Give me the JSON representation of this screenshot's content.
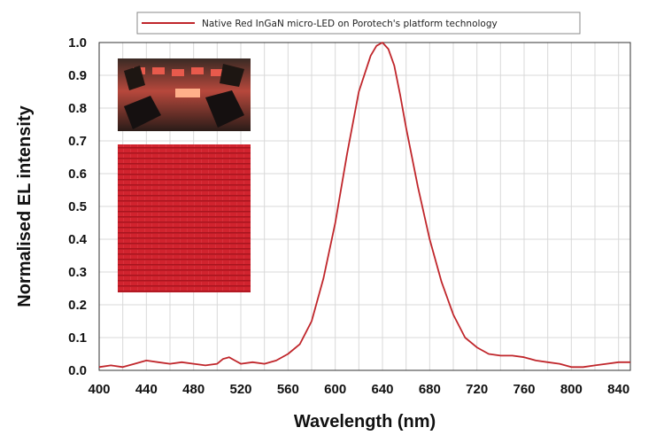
{
  "chart_data": {
    "type": "line",
    "xlabel": "Wavelength (nm)",
    "ylabel": "Normalised EL intensity",
    "xlim": [
      400,
      850
    ],
    "ylim": [
      0,
      1
    ],
    "x_ticks": [
      400,
      440,
      480,
      520,
      560,
      600,
      640,
      680,
      720,
      760,
      800,
      840
    ],
    "x_tick_labels": [
      "400",
      "440",
      "480",
      "520",
      "560",
      "600",
      "640",
      "680",
      "720",
      "760",
      "800",
      "840"
    ],
    "y_ticks": [
      0,
      0.1,
      0.2,
      0.3,
      0.4,
      0.5,
      0.6,
      0.7,
      0.8,
      0.9,
      1.0
    ],
    "y_tick_labels": [
      "0.0",
      "0.1",
      "0.2",
      "0.3",
      "0.4",
      "0.5",
      "0.6",
      "0.7",
      "0.8",
      "0.9",
      "1.0"
    ],
    "grid": true,
    "legend_position": "top",
    "series": [
      {
        "name": "Native Red InGaN micro-LED on Porotech's platform technology",
        "color": "#c0262b",
        "x": [
          400,
          410,
          420,
          430,
          440,
          450,
          460,
          470,
          480,
          490,
          500,
          505,
          510,
          515,
          520,
          530,
          540,
          550,
          560,
          570,
          580,
          590,
          600,
          610,
          620,
          630,
          635,
          640,
          645,
          650,
          655,
          660,
          670,
          680,
          690,
          700,
          710,
          720,
          730,
          740,
          750,
          760,
          770,
          780,
          790,
          800,
          810,
          820,
          830,
          840,
          850
        ],
        "y": [
          0.01,
          0.015,
          0.01,
          0.02,
          0.03,
          0.025,
          0.02,
          0.025,
          0.02,
          0.015,
          0.02,
          0.035,
          0.04,
          0.03,
          0.02,
          0.025,
          0.02,
          0.03,
          0.05,
          0.08,
          0.15,
          0.28,
          0.45,
          0.66,
          0.85,
          0.96,
          0.99,
          1.0,
          0.98,
          0.93,
          0.84,
          0.74,
          0.56,
          0.4,
          0.27,
          0.17,
          0.1,
          0.07,
          0.05,
          0.045,
          0.045,
          0.04,
          0.03,
          0.025,
          0.02,
          0.01,
          0.01,
          0.015,
          0.02,
          0.025,
          0.025
        ]
      }
    ],
    "inset_images": [
      {
        "name": "device-photo-inset",
        "fill_color": "#c4302f"
      },
      {
        "name": "micro-led-array-inset",
        "fill_color": "#c8212b"
      }
    ]
  }
}
